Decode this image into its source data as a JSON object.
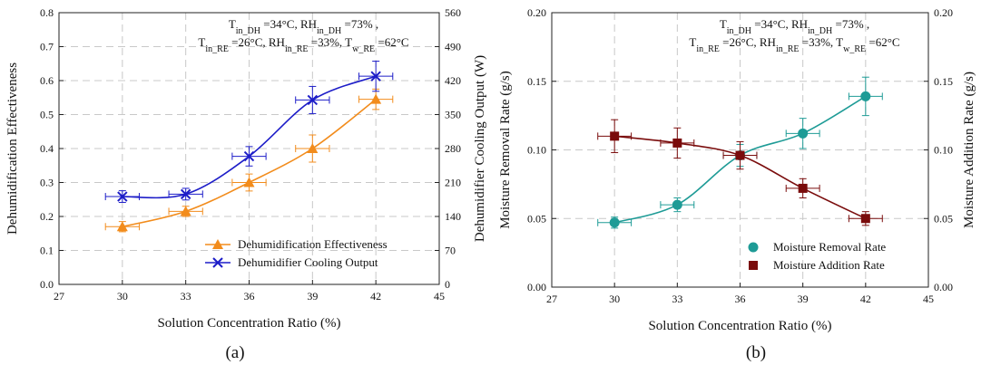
{
  "figure": {
    "panel_labels": [
      "(a)",
      "(b)"
    ]
  },
  "chart_data": [
    {
      "type": "line",
      "panel": "(a)",
      "xlabel": "Solution Concentration Ratio (%)",
      "ylabel_left": "Dehumidification Effectiveness",
      "ylabel_right": "Dehumidifier Cooling Output (W)",
      "xlim": [
        27,
        45
      ],
      "ylim_left": [
        0.0,
        0.8
      ],
      "ylim_right": [
        0,
        560
      ],
      "x_ticks": [
        27,
        30,
        33,
        36,
        39,
        42,
        45
      ],
      "y_ticks_left": [
        0.0,
        0.1,
        0.2,
        0.3,
        0.4,
        0.5,
        0.6,
        0.7,
        0.8
      ],
      "y_ticks_right": [
        0,
        70,
        140,
        210,
        280,
        350,
        420,
        490,
        560
      ],
      "grid": true,
      "legend_position": "bottom-right",
      "annotation": [
        [
          {
            "t": "T"
          },
          {
            "t": "in_DH",
            "sub": true
          },
          {
            "t": " =34°C, RH"
          },
          {
            "t": "in_DH",
            "sub": true
          },
          {
            "t": " =73% ,"
          }
        ],
        [
          {
            "t": "T"
          },
          {
            "t": "in_RE",
            "sub": true
          },
          {
            "t": "  =26°C, RH"
          },
          {
            "t": "in_RE",
            "sub": true
          },
          {
            "t": " =33%, T"
          },
          {
            "t": "w_RE",
            "sub": true
          },
          {
            "t": " =62°C"
          }
        ]
      ],
      "series": [
        {
          "name": "Dehumidification Effectiveness",
          "axis": "left",
          "marker": "triangle",
          "color": "#f28c1c",
          "x": [
            30,
            33,
            36,
            39,
            42
          ],
          "y": [
            0.17,
            0.215,
            0.3,
            0.4,
            0.545
          ],
          "y_err": [
            0.015,
            0.015,
            0.025,
            0.04,
            0.03
          ],
          "x_err": [
            0.8,
            0.8,
            0.8,
            0.8,
            0.8
          ]
        },
        {
          "name": "Dehumidifier Cooling Output",
          "axis": "right",
          "marker": "x",
          "color": "#1d1dc8",
          "x": [
            30,
            33,
            36,
            39,
            42
          ],
          "y": [
            181,
            186,
            264,
            380,
            429
          ],
          "y_err": [
            12,
            12,
            20,
            28,
            31
          ],
          "x_err": [
            0.8,
            0.8,
            0.8,
            0.8,
            0.8
          ]
        }
      ]
    },
    {
      "type": "line",
      "panel": "(b)",
      "xlabel": "Solution Concentration Ratio (%)",
      "ylabel_left": "Moisture Removal Rate (g/s)",
      "ylabel_right": "Moisture Addition Rate (g/s)",
      "xlim": [
        27,
        45
      ],
      "ylim_left": [
        0.0,
        0.2
      ],
      "ylim_right": [
        0.0,
        0.2
      ],
      "x_ticks": [
        27,
        30,
        33,
        36,
        39,
        42,
        45
      ],
      "y_ticks_left": [
        0.0,
        0.05,
        0.1,
        0.15,
        0.2
      ],
      "y_ticks_right": [
        0.0,
        0.05,
        0.1,
        0.15,
        0.2
      ],
      "grid": true,
      "legend_position": "bottom-right",
      "annotation": [
        [
          {
            "t": "T"
          },
          {
            "t": "in_DH",
            "sub": true
          },
          {
            "t": " =34°C, RH"
          },
          {
            "t": "in_DH",
            "sub": true
          },
          {
            "t": " =73% ,"
          }
        ],
        [
          {
            "t": "T"
          },
          {
            "t": "in_RE",
            "sub": true
          },
          {
            "t": "  =26°C, RH"
          },
          {
            "t": "in_RE",
            "sub": true
          },
          {
            "t": " =33%, T"
          },
          {
            "t": "w_RE",
            "sub": true
          },
          {
            "t": " =62°C"
          }
        ]
      ],
      "series": [
        {
          "name": "Moisture Removal Rate",
          "axis": "left",
          "marker": "circle",
          "color": "#1e9b96",
          "x": [
            30,
            33,
            36,
            39,
            42
          ],
          "y": [
            0.047,
            0.06,
            0.096,
            0.112,
            0.139
          ],
          "y_err": [
            0.004,
            0.005,
            0.008,
            0.011,
            0.014
          ],
          "x_err": [
            0.8,
            0.8,
            0.8,
            0.8,
            0.8
          ]
        },
        {
          "name": "Moisture Addition Rate",
          "axis": "right",
          "marker": "square",
          "color": "#7a0c0c",
          "x": [
            30,
            33,
            36,
            39,
            42
          ],
          "y": [
            0.11,
            0.105,
            0.096,
            0.072,
            0.05
          ],
          "y_err": [
            0.012,
            0.011,
            0.01,
            0.007,
            0.005
          ],
          "x_err": [
            0.8,
            0.8,
            0.8,
            0.8,
            0.8
          ]
        }
      ]
    }
  ]
}
